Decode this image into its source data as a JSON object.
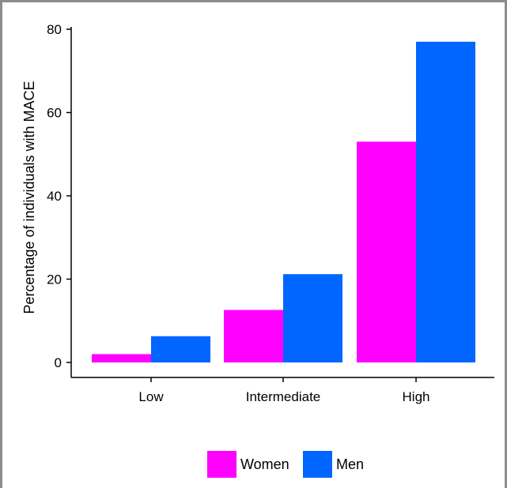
{
  "chart_data": {
    "type": "bar",
    "title": "",
    "xlabel": "",
    "ylabel": "Percentage of individuals with MACE",
    "categories": [
      "Low",
      "Intermediate",
      "High"
    ],
    "series": [
      {
        "name": "Women",
        "values": [
          2,
          12.6,
          53
        ],
        "color": "#ff00ff"
      },
      {
        "name": "Men",
        "values": [
          6.3,
          21.2,
          77
        ],
        "color": "#0066ff"
      }
    ],
    "ylim": [
      0,
      80
    ],
    "yticks": [
      0,
      20,
      40,
      60,
      80
    ],
    "grid": false,
    "legend_position": "bottom"
  }
}
